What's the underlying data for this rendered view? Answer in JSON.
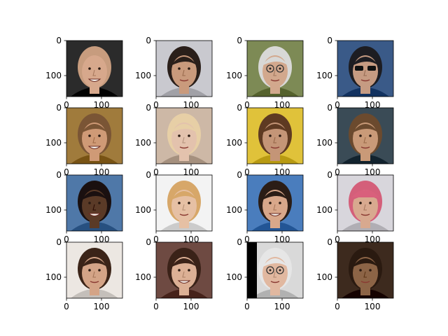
{
  "chart_data": {
    "type": "image_grid",
    "rows": 4,
    "cols": 4,
    "xlim": [
      0,
      160
    ],
    "ylim": [
      160,
      0
    ],
    "xticks": [
      0,
      100
    ],
    "yticks": [
      0,
      100
    ],
    "tick_labels": {
      "zero": "0",
      "hundred": "100"
    },
    "images": [
      {
        "row": 0,
        "col": 0,
        "icon": "face-icon",
        "bg": "#2b2b2b",
        "skin": "#d7a88c",
        "hair": "#c79c7e",
        "variant": "bald-smiling-man"
      },
      {
        "row": 0,
        "col": 1,
        "icon": "face-icon",
        "bg": "#c9c9cf",
        "skin": "#c99a7c",
        "hair": "#2a1f1a",
        "variant": "man-dark-hair"
      },
      {
        "row": 0,
        "col": 2,
        "icon": "face-icon",
        "bg": "#7d8a55",
        "skin": "#d2a88d",
        "hair": "#d8d8d6",
        "variant": "man-glasses"
      },
      {
        "row": 0,
        "col": 3,
        "icon": "face-icon",
        "bg": "#3a5a88",
        "skin": "#c69b82",
        "hair": "#1d1d22",
        "variant": "man-sunglasses"
      },
      {
        "row": 1,
        "col": 0,
        "icon": "face-icon",
        "bg": "#a07b3c",
        "skin": "#cf9a76",
        "hair": "#7a5535",
        "variant": "grimacing-woman"
      },
      {
        "row": 1,
        "col": 1,
        "icon": "face-icon",
        "bg": "#cdb8a6",
        "skin": "#e3c2ad",
        "hair": "#e7cfa6",
        "variant": "blonde-woman"
      },
      {
        "row": 1,
        "col": 2,
        "icon": "face-icon",
        "bg": "#e0c23a",
        "skin": "#c49577",
        "hair": "#5e3a22",
        "variant": "curly-hair-rocker"
      },
      {
        "row": 1,
        "col": 3,
        "icon": "face-icon",
        "bg": "#3a4b56",
        "skin": "#c99a78",
        "hair": "#6b4a2e",
        "variant": "blurry-face"
      },
      {
        "row": 2,
        "col": 0,
        "icon": "face-icon",
        "bg": "#4f78a8",
        "skin": "#5a3a27",
        "hair": "#1a1010",
        "variant": "smiling-man"
      },
      {
        "row": 2,
        "col": 1,
        "icon": "face-icon",
        "bg": "#f3f3f3",
        "skin": "#e6c0a4",
        "hair": "#d7a769",
        "variant": "blonde-bob"
      },
      {
        "row": 2,
        "col": 2,
        "icon": "face-icon",
        "bg": "#4a7dbd",
        "skin": "#d8a78a",
        "hair": "#2b1d16",
        "variant": "smiling-man-blue"
      },
      {
        "row": 2,
        "col": 3,
        "icon": "face-icon",
        "bg": "#d8d6dc",
        "skin": "#d8a98f",
        "hair": "#d45f7a",
        "variant": "pink-cap"
      },
      {
        "row": 3,
        "col": 0,
        "icon": "face-icon",
        "bg": "#ece7e2",
        "skin": "#d4a487",
        "hair": "#3b2418",
        "variant": "brunette-woman"
      },
      {
        "row": 3,
        "col": 1,
        "icon": "face-icon",
        "bg": "#6e4a42",
        "skin": "#dcb095",
        "hair": "#3a2218",
        "variant": "smiling-woman"
      },
      {
        "row": 3,
        "col": 2,
        "icon": "face-icon",
        "bg": "#d9d9d9",
        "skin": "#e1b8a0",
        "hair": "#e6e6e6",
        "variant": "older-man-glasses"
      },
      {
        "row": 3,
        "col": 3,
        "icon": "face-icon",
        "bg": "#3d2a1e",
        "skin": "#8c6446",
        "hair": "#2a1a10",
        "variant": "dark-blurry-face"
      }
    ]
  }
}
